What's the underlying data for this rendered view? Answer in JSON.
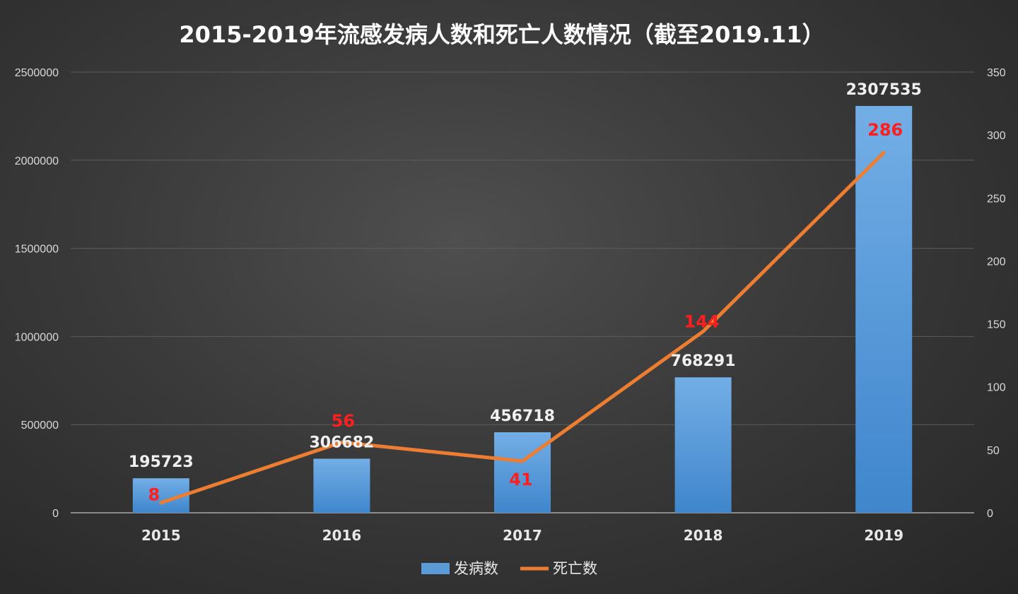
{
  "chart_data": {
    "type": "bar",
    "title": "2015-2019年流感发病人数和死亡人数情况（截至2019.11）",
    "categories": [
      "2015",
      "2016",
      "2017",
      "2018",
      "2019"
    ],
    "series": [
      {
        "name": "发病数",
        "type": "bar",
        "axis": "left",
        "values": [
          195723,
          306682,
          456718,
          768291,
          2307535
        ],
        "labels": [
          "195723",
          "306682",
          "456718",
          "768291",
          "2307535"
        ],
        "color": "#5b9bd5"
      },
      {
        "name": "死亡数",
        "type": "line",
        "axis": "right",
        "values": [
          8,
          56,
          41,
          144,
          286
        ],
        "labels": [
          "8",
          "56",
          "41",
          "144",
          "286"
        ],
        "color": "#ed7d31"
      }
    ],
    "y_left": {
      "min": 0,
      "max": 2500000,
      "ticks": [
        "0",
        "500000",
        "1000000",
        "1500000",
        "2000000",
        "2500000"
      ]
    },
    "y_right": {
      "min": 0,
      "max": 350,
      "ticks": [
        "0",
        "50",
        "100",
        "150",
        "200",
        "250",
        "300",
        "350"
      ]
    },
    "grid": true,
    "legend_position": "bottom",
    "label_color": "#ff1e1e"
  }
}
